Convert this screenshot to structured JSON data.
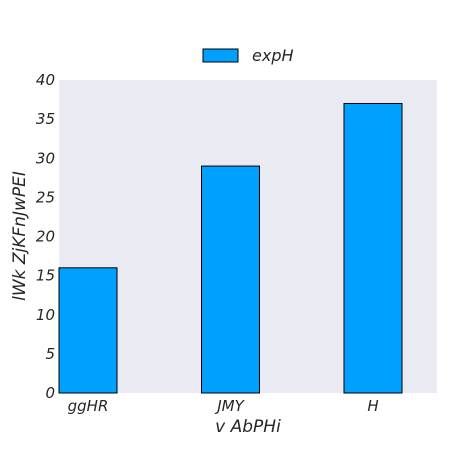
{
  "chart_data": {
    "type": "bar",
    "categories": [
      "ggHR",
      "JMY",
      "H"
    ],
    "series": [
      {
        "name": "expH",
        "values": [
          16,
          29,
          37
        ]
      }
    ],
    "xlabel": "v AbPHi",
    "ylabel": "lWk ZjKFnJwPEI",
    "ylim": [
      0,
      40
    ],
    "yticks": [
      0,
      5,
      10,
      15,
      20,
      25,
      30,
      35,
      40
    ],
    "grid": false,
    "legend_position": "top-center",
    "colors": {
      "bar": "#00a0ff",
      "bar_edge": "#000000",
      "plot_background": "#eaeaf2"
    }
  }
}
